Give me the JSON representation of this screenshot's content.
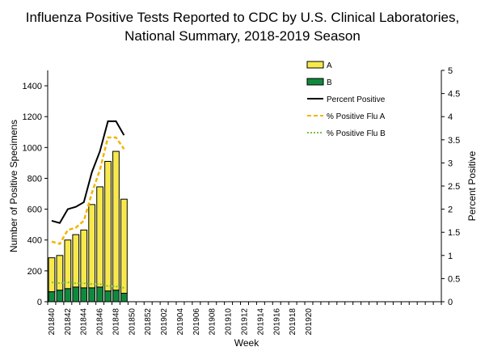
{
  "chart_data": {
    "type": "bar",
    "title_line1": "Influenza Positive Tests Reported to CDC by U.S. Clinical Laboratories,",
    "title_line2": "National Summary, 2018-2019 Season",
    "xlabel": "Week",
    "ylabel": "Number of Positive Specimens",
    "ylabel_right": "Percent Positive",
    "ylim": [
      0,
      1500
    ],
    "y_ticks": [
      0,
      200,
      400,
      600,
      800,
      1000,
      1200,
      1400
    ],
    "ylim_right": [
      0,
      5
    ],
    "y_ticks_right": [
      "0",
      "0.5",
      "1",
      "1.5",
      "2",
      "2.5",
      "3",
      "3.5",
      "4",
      "4.5",
      "5"
    ],
    "x_tick_labels": [
      "201840",
      "201842",
      "201844",
      "201846",
      "201848",
      "201850",
      "201852",
      "201902",
      "201904",
      "201906",
      "201908",
      "201910",
      "201912",
      "201914",
      "201916",
      "201918",
      "201920"
    ],
    "x": [
      "201840",
      "201841",
      "201842",
      "201843",
      "201844",
      "201845",
      "201846",
      "201847",
      "201848",
      "201849"
    ],
    "bar_series": [
      {
        "name": "B",
        "color": "#0f8a3c",
        "values": [
          65,
          75,
          85,
          95,
          90,
          90,
          95,
          70,
          75,
          55
        ]
      },
      {
        "name": "A",
        "color": "#f7e94b",
        "values": [
          220,
          225,
          315,
          340,
          375,
          540,
          650,
          840,
          900,
          610
        ]
      }
    ],
    "line_series": [
      {
        "name": "Percent Positive",
        "color": "#000000",
        "style": "solid",
        "values": [
          1.75,
          1.7,
          2.0,
          2.05,
          2.15,
          2.8,
          3.25,
          3.9,
          3.9,
          3.6
        ]
      },
      {
        "name": "% Positive Flu A",
        "color": "#f5b400",
        "style": "dashed",
        "values": [
          1.3,
          1.25,
          1.55,
          1.6,
          1.75,
          2.35,
          2.85,
          3.55,
          3.55,
          3.3
        ]
      },
      {
        "name": "% Positive Flu B",
        "color": "#7ac142",
        "style": "dotted",
        "values": [
          0.42,
          0.4,
          0.42,
          0.4,
          0.4,
          0.38,
          0.38,
          0.34,
          0.33,
          0.3
        ]
      }
    ],
    "legend": {
      "placement": "top-right",
      "entries": [
        "A",
        "B",
        "Percent Positive",
        "% Positive Flu A",
        "% Positive Flu B"
      ]
    },
    "grid": false
  }
}
